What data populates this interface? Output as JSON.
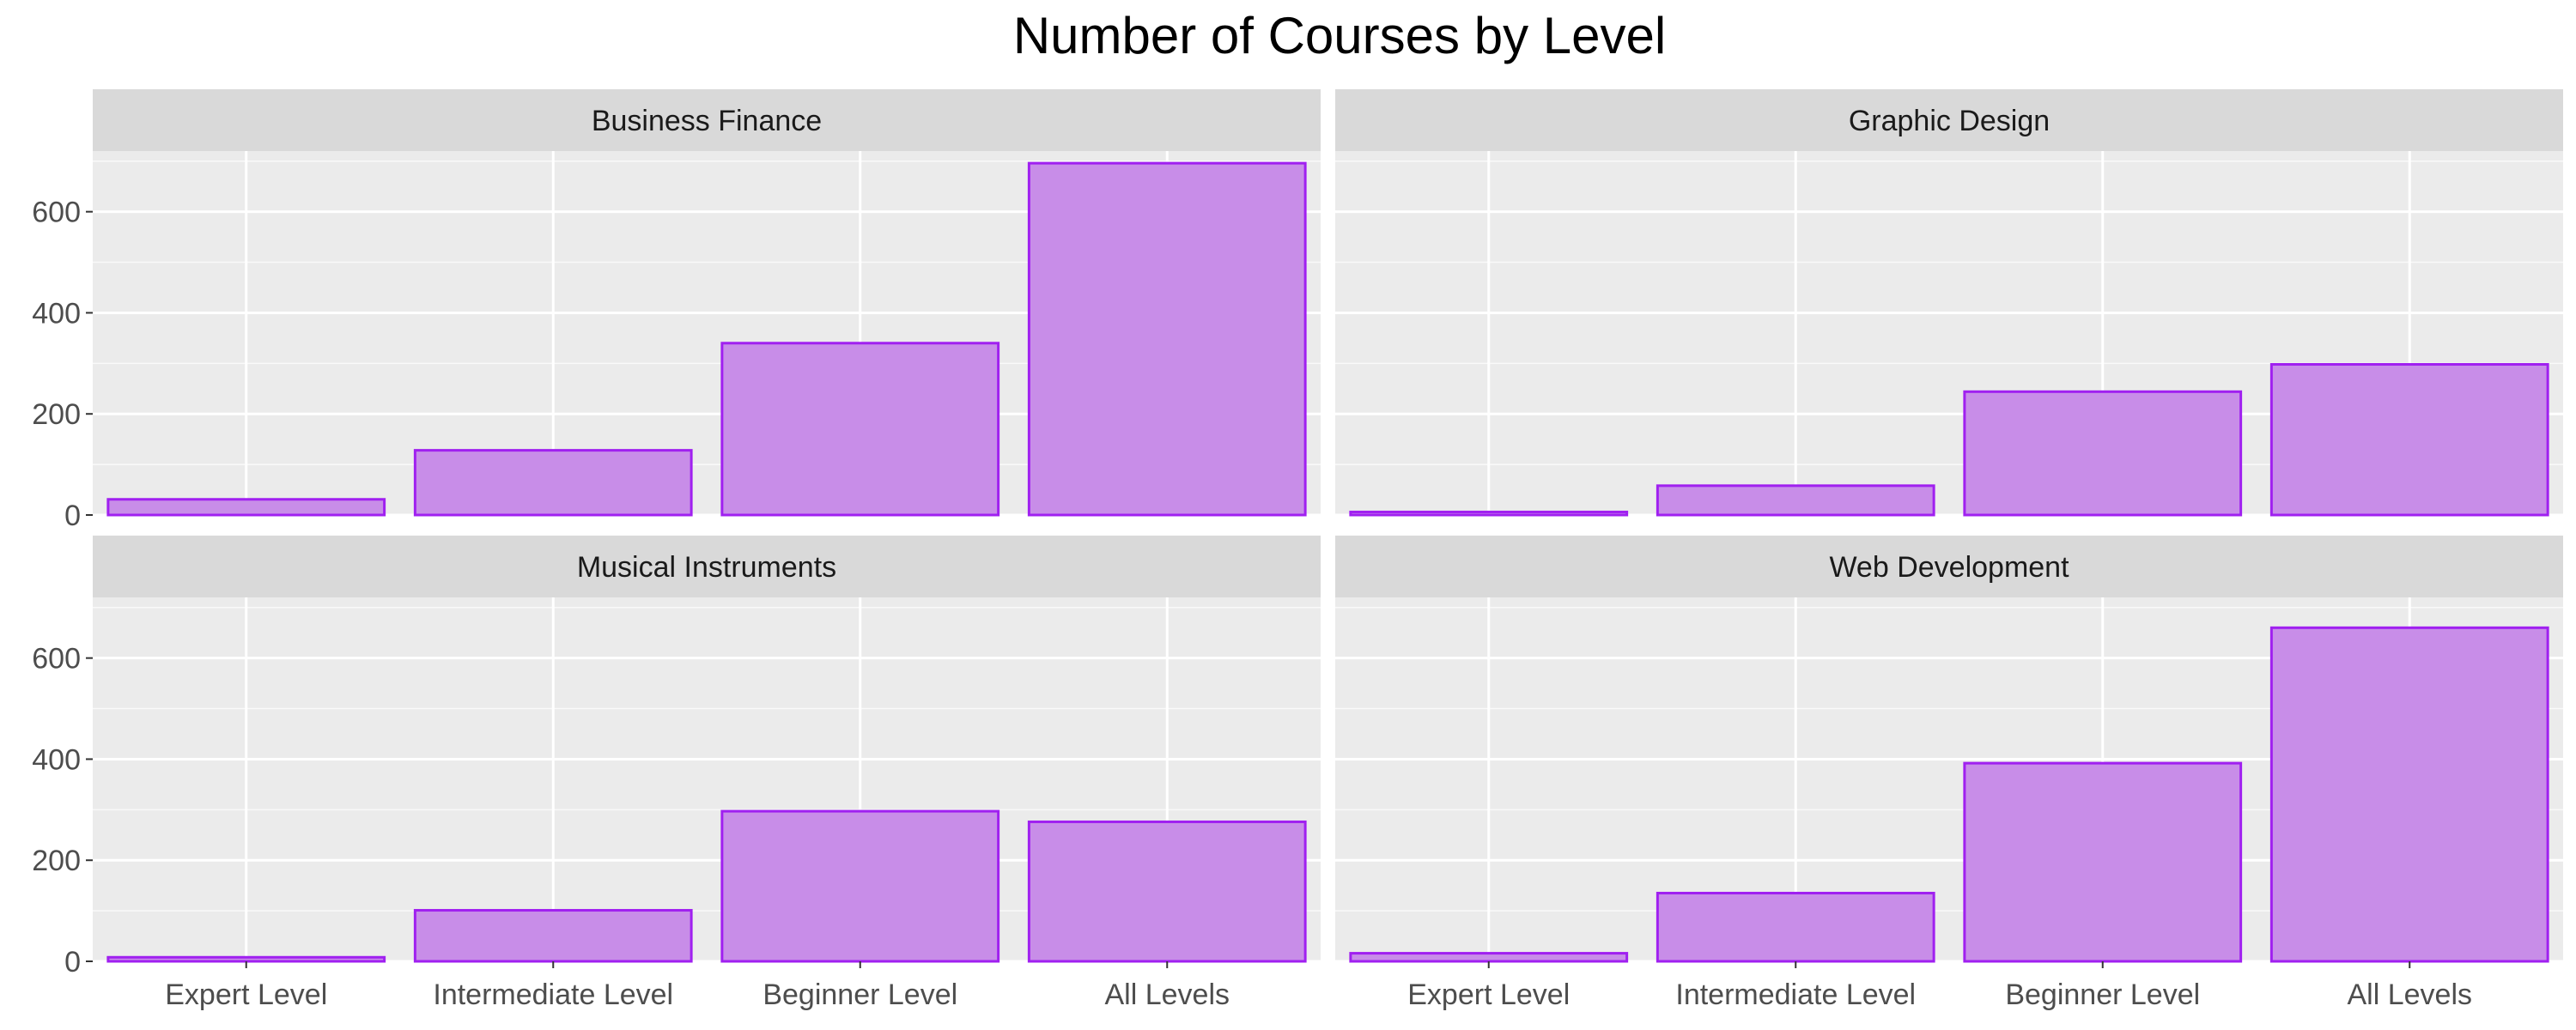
{
  "chart_data": {
    "type": "bar",
    "title": "Number of Courses by Level",
    "xlabel": "",
    "ylabel": "",
    "categories": [
      "Expert Level",
      "Intermediate Level",
      "Beginner Level",
      "All Levels"
    ],
    "ylim": [
      0,
      720
    ],
    "yticks": [
      "0",
      "200",
      "400",
      "600"
    ],
    "ytick_values": [
      0,
      200,
      400,
      600
    ],
    "grid": true,
    "facets": [
      {
        "name": "Business Finance",
        "values": [
          31,
          128,
          340,
          696
        ]
      },
      {
        "name": "Graphic Design",
        "values": [
          6,
          58,
          244,
          298
        ]
      },
      {
        "name": "Musical Instruments",
        "values": [
          8,
          101,
          297,
          276
        ]
      },
      {
        "name": "Web Development",
        "values": [
          16,
          135,
          392,
          660
        ]
      }
    ],
    "colors": {
      "bar_fill": "#c88de8",
      "bar_stroke": "#a020f0",
      "panel_bg": "#ebebeb",
      "strip_bg": "#d9d9d9",
      "grid_major": "#ffffff",
      "text": "#1a1a1a",
      "tick_text": "#4d4d4d"
    }
  }
}
